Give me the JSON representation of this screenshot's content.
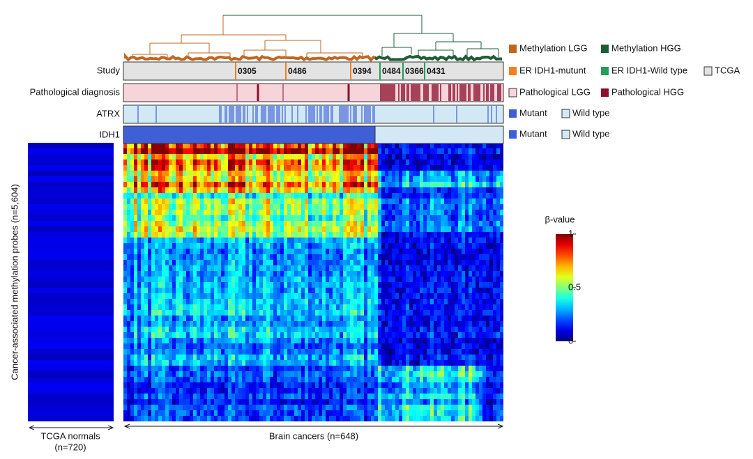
{
  "annotation_rows": [
    {
      "label": "Study"
    },
    {
      "label": "Pathological diagnosis"
    },
    {
      "label": "ATRX"
    },
    {
      "label": "IDH1"
    }
  ],
  "study_labels": [
    {
      "text": "0305",
      "group": "ER IDH1-mutunt"
    },
    {
      "text": "0486",
      "group": "ER IDH1-mutunt"
    },
    {
      "text": "0394",
      "group": "ER IDH1-mutunt"
    },
    {
      "text": "0484",
      "group": "ER IDH1-Wild type"
    },
    {
      "text": "0366",
      "group": "ER IDH1-Wild type"
    },
    {
      "text": "0431",
      "group": "ER IDH1-Wild type"
    }
  ],
  "legend": [
    [
      {
        "label": "Methylation LGG",
        "color": "#c2651f"
      },
      {
        "label": "Methylation HGG",
        "color": "#1d5e3a"
      }
    ],
    [
      {
        "label": "ER IDH1-mutunt",
        "color": "#f47e20"
      },
      {
        "label": "ER IDH1-Wild type",
        "color": "#23a055"
      },
      {
        "label": "TCGA",
        "color": "#e3e3e3"
      }
    ],
    [
      {
        "label": "Pathological LGG",
        "color": "#f7d3da"
      },
      {
        "label": "Pathological HGG",
        "color": "#8c0f2e"
      }
    ],
    [
      {
        "label": "Mutant",
        "color": "#3f5fd6"
      },
      {
        "label": "Wild type",
        "color": "#d2e9f5"
      }
    ],
    [
      {
        "label": "Mutant",
        "color": "#3f5fd6"
      },
      {
        "label": "Wild type",
        "color": "#d2e9f5"
      }
    ]
  ],
  "heatmap": {
    "y_label": "Cancer-associated methylation probes (n=5,604)",
    "normals_label": "TCGA normals",
    "normals_count": "(n=720)",
    "cancers_label": "Brain cancers (n=648)"
  },
  "colorbar": {
    "title": "β-value",
    "lim": [
      0,
      1
    ],
    "ticks": [
      0,
      0.5,
      1
    ]
  }
}
